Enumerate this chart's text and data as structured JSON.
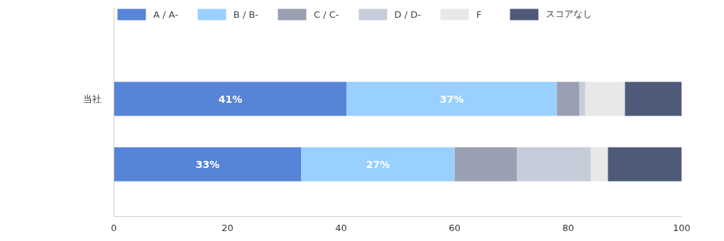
{
  "chart_data": {
    "type": "bar",
    "orientation": "horizontal",
    "stacked": true,
    "categories": [
      "当社",
      null
    ],
    "series": [
      {
        "name": "A / A-",
        "color": "#5884d7",
        "values": [
          41,
          33
        ],
        "value_labels": [
          "41%",
          "33%"
        ]
      },
      {
        "name": "B / B-",
        "color": "#99d0ff",
        "values": [
          37,
          27
        ],
        "value_labels": [
          "37%",
          "27%"
        ]
      },
      {
        "name": "C / C-",
        "color": "#9a9fb1",
        "values": [
          4,
          11
        ]
      },
      {
        "name": "D / D-",
        "color": "#c7ccda",
        "values": [
          1,
          13
        ]
      },
      {
        "name": "F",
        "color": "#e8e8e8",
        "values": [
          7,
          3
        ]
      },
      {
        "name": "スコアなし",
        "color": "#4e5a78",
        "values": [
          10,
          13
        ]
      }
    ],
    "xlim": [
      0,
      100
    ],
    "xticks": [
      0,
      20,
      40,
      60,
      80,
      100
    ],
    "grid": false,
    "legend": "top"
  }
}
